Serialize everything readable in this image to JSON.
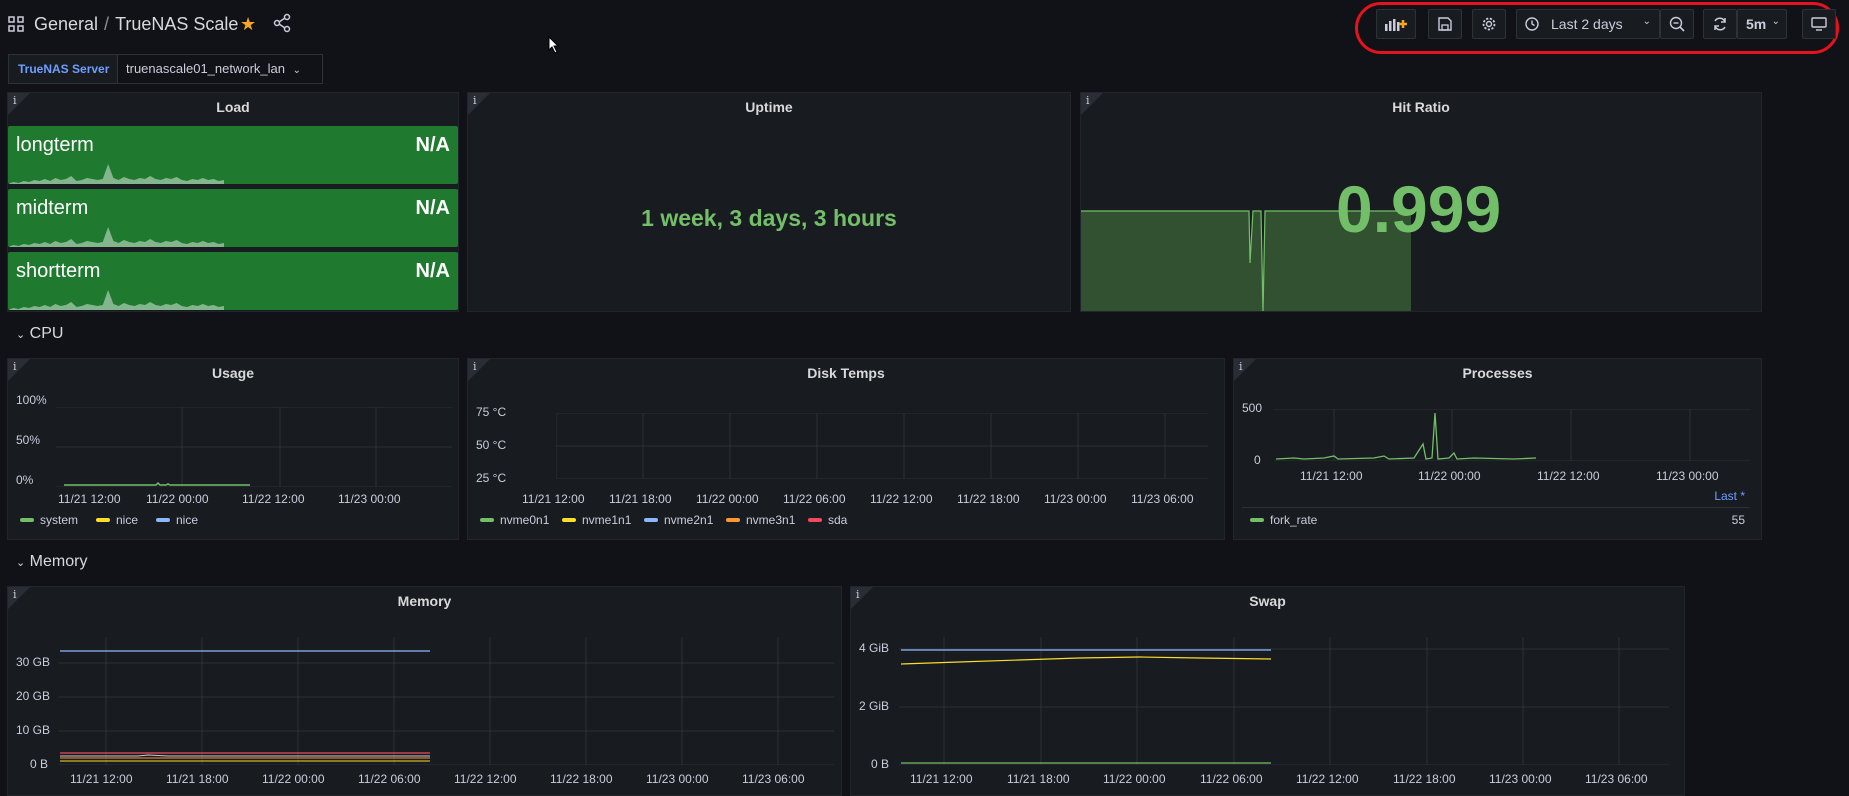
{
  "header": {
    "folder": "General",
    "separator": "/",
    "title": "TrueNAS Scale"
  },
  "toolbar": {
    "time_range": "Last 2 days",
    "refresh_interval": "5m"
  },
  "variables": {
    "label": "TrueNAS Server",
    "value": "truenascale01_network_lan"
  },
  "panels": {
    "load": {
      "title": "Load",
      "info": "i",
      "stats": [
        {
          "name": "longterm",
          "value": "N/A"
        },
        {
          "name": "midterm",
          "value": "N/A"
        },
        {
          "name": "shortterm",
          "value": "N/A"
        }
      ]
    },
    "uptime": {
      "title": "Uptime",
      "info": "i",
      "value": "1 week, 3 days, 3 hours"
    },
    "hit_ratio": {
      "title": "Hit Ratio",
      "info": "i",
      "value": "0.999"
    }
  },
  "sections": {
    "cpu": "CPU",
    "memory": "Memory"
  },
  "chart_data": [
    {
      "type": "line",
      "title": "Usage",
      "y_ticks": [
        "100%",
        "50%",
        "0%"
      ],
      "x_ticks": [
        "11/21 12:00",
        "11/22 00:00",
        "11/22 12:00",
        "11/23 00:00"
      ],
      "legend": [
        {
          "name": "system",
          "color": "#73bf69"
        },
        {
          "name": "nice",
          "color": "#fade2a"
        },
        {
          "name": "nice",
          "color": "#8ab8ff"
        }
      ]
    },
    {
      "type": "line",
      "title": "Disk Temps",
      "y_ticks": [
        "75 °C",
        "50 °C",
        "25 °C"
      ],
      "x_ticks": [
        "11/21 12:00",
        "11/21 18:00",
        "11/22 00:00",
        "11/22 06:00",
        "11/22 12:00",
        "11/22 18:00",
        "11/23 00:00",
        "11/23 06:00"
      ],
      "legend": [
        {
          "name": "nvme0n1",
          "color": "#73bf69"
        },
        {
          "name": "nvme1n1",
          "color": "#fade2a"
        },
        {
          "name": "nvme2n1",
          "color": "#8ab8ff"
        },
        {
          "name": "nvme3n1",
          "color": "#ff9830"
        },
        {
          "name": "sda",
          "color": "#f2495c"
        }
      ]
    },
    {
      "type": "line",
      "title": "Processes",
      "y_ticks": [
        "500",
        "0"
      ],
      "x_ticks": [
        "11/21 12:00",
        "11/22 00:00",
        "11/22 12:00",
        "11/23 00:00"
      ],
      "legend_header": "Last *",
      "legend": [
        {
          "name": "fork_rate",
          "color": "#73bf69",
          "last": "55"
        }
      ]
    },
    {
      "type": "line",
      "title": "Memory",
      "y_ticks": [
        "30 GB",
        "20 GB",
        "10 GB",
        "0 B"
      ],
      "x_ticks": [
        "11/21 12:00",
        "11/21 18:00",
        "11/22 00:00",
        "11/22 06:00",
        "11/22 12:00",
        "11/22 18:00",
        "11/23 00:00",
        "11/23 06:00"
      ]
    },
    {
      "type": "line",
      "title": "Swap",
      "y_ticks": [
        "4 GiB",
        "2 GiB",
        "0 B"
      ],
      "x_ticks": [
        "11/21 12:00",
        "11/21 18:00",
        "11/22 00:00",
        "11/22 06:00",
        "11/22 12:00",
        "11/22 18:00",
        "11/23 00:00",
        "11/23 06:00"
      ]
    }
  ]
}
